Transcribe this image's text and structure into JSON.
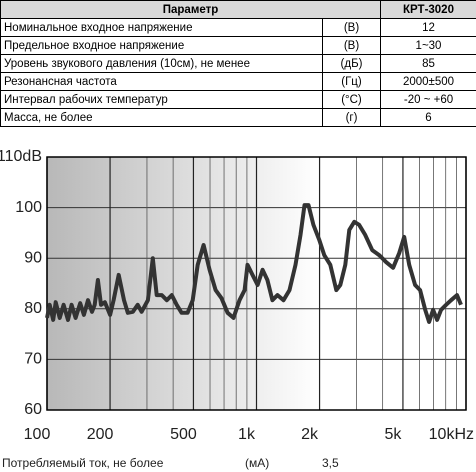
{
  "table": {
    "header": [
      "Параметр",
      "КРТ-3020"
    ],
    "rows": [
      [
        "Номинальное входное напряжение",
        "(В)",
        "12"
      ],
      [
        "Предельное входное напряжение",
        "(В)",
        "1~30"
      ],
      [
        "Уровень звукового давления (10см), не менее",
        "(дБ)",
        "85"
      ],
      [
        "Резонансная частота",
        "(Гц)",
        "2000±500"
      ],
      [
        "Интервал рабочих температур",
        "(°C)",
        "-20 ~ +60"
      ],
      [
        "Масса, не более",
        "(г)",
        "6"
      ]
    ]
  },
  "chart_data": {
    "type": "line",
    "log_x": true,
    "grid": true,
    "color": "#333333",
    "xlim": [
      100,
      10000
    ],
    "ylim": [
      60,
      110
    ],
    "xticks": [
      100,
      200,
      500,
      {
        "value": 1000,
        "label": "1k"
      },
      {
        "value": 2000,
        "label": "2k"
      },
      {
        "value": 5000,
        "label": "5k"
      },
      {
        "value": 10000,
        "label": "10kHz"
      }
    ],
    "minor_xticks": [
      300,
      400,
      600,
      700,
      800,
      900,
      3000,
      4000,
      6000,
      7000,
      8000,
      9000
    ],
    "yticks": [
      60,
      70,
      80,
      90,
      100,
      {
        "value": 110,
        "label": "110dB"
      }
    ],
    "x": [
      100,
      103,
      107,
      110,
      115,
      120,
      126,
      131,
      137,
      144,
      150,
      157,
      164,
      169,
      175,
      181,
      189,
      200,
      208,
      220,
      233,
      243,
      257,
      271,
      283,
      303,
      320,
      334,
      353,
      373,
      394,
      416,
      439,
      469,
      496,
      524,
      559,
      597,
      638,
      681,
      728,
      777,
      830,
      877,
      906,
      957,
      1012,
      1069,
      1127,
      1191,
      1259,
      1345,
      1437,
      1535,
      1622,
      1694,
      1770,
      1868,
      1995,
      2107,
      2251,
      2404,
      2512,
      2654,
      2773,
      2931,
      3090,
      3304,
      3565,
      3855,
      4159,
      4487,
      4797,
      5070,
      5358,
      5715,
      6039,
      6383,
      6668,
      6966,
      7278,
      7603,
      8035,
      8492,
      9057,
      9462
    ],
    "values": [
      78.2,
      80.8,
      77.8,
      81.3,
      78.2,
      80.8,
      77.8,
      80.8,
      78.2,
      81.1,
      78.8,
      81.7,
      79.4,
      80.8,
      85.7,
      80.8,
      81.3,
      78.8,
      81.7,
      86.7,
      81.7,
      79.2,
      79.4,
      80.8,
      79.4,
      81.7,
      90.0,
      82.7,
      82.7,
      81.7,
      82.7,
      80.8,
      79.2,
      79.2,
      81.7,
      88.7,
      92.6,
      87.7,
      83.7,
      82.1,
      79.2,
      78.2,
      81.7,
      83.7,
      88.7,
      86.7,
      84.7,
      87.7,
      85.7,
      81.7,
      82.7,
      81.7,
      83.7,
      88.7,
      94.6,
      100.5,
      100.5,
      96.6,
      93.6,
      90.6,
      88.7,
      83.7,
      84.7,
      88.7,
      95.6,
      97.2,
      96.6,
      94.6,
      91.6,
      90.6,
      89.2,
      88.1,
      91.0,
      94.2,
      88.7,
      84.7,
      83.7,
      79.8,
      77.4,
      79.8,
      77.8,
      79.8,
      80.8,
      81.7,
      82.7,
      80.8
    ]
  },
  "footer": [
    "Потребляемый ток, не более",
    "(мА)",
    "3,5"
  ]
}
